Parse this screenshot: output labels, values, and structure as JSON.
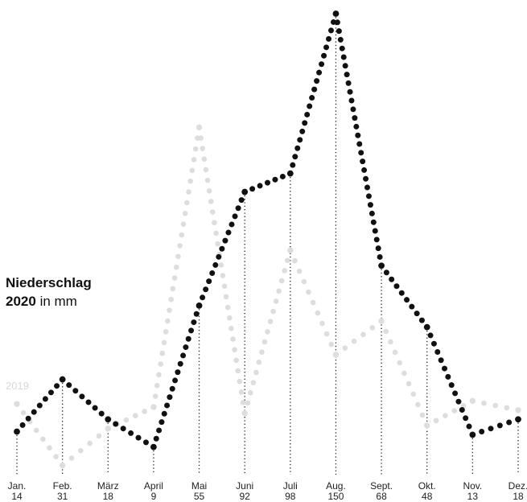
{
  "chart_data": {
    "type": "line",
    "title": "Niederschlag",
    "subtitle": {
      "year": "2020",
      "unit": "in mm"
    },
    "categories": [
      "Jan.",
      "Feb.",
      "März",
      "April",
      "Mai",
      "Juni",
      "Juli",
      "Aug.",
      "Sept.",
      "Okt.",
      "Nov.",
      "Dez."
    ],
    "series": [
      {
        "name": "2020",
        "values": [
          14,
          31,
          18,
          9,
          55,
          92,
          98,
          150,
          68,
          48,
          13,
          18
        ],
        "color": "#111111"
      },
      {
        "name": "2019",
        "values": [
          23,
          3,
          15,
          22,
          113,
          20,
          73,
          39,
          50,
          16,
          24,
          21
        ],
        "color": "#dddddd"
      }
    ],
    "ylim": [
      0,
      150
    ],
    "grid": false,
    "legend": "inline-left"
  }
}
